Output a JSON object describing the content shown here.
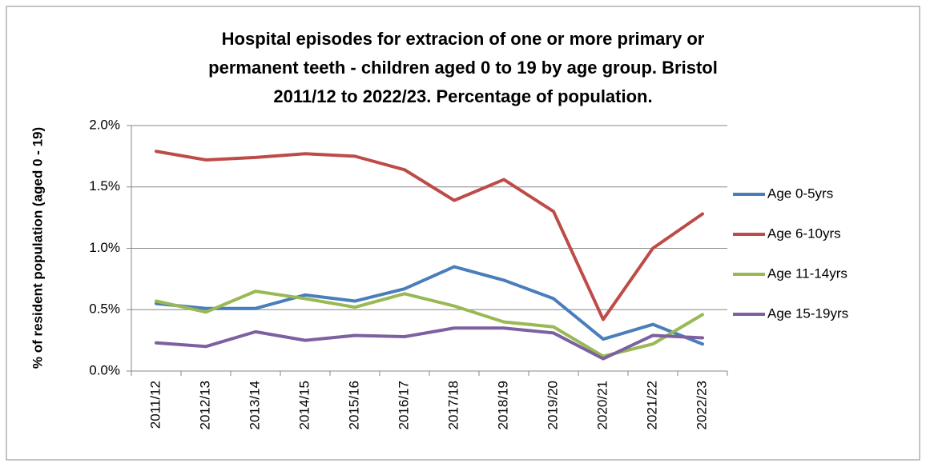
{
  "chart_data": {
    "type": "line",
    "title": [
      "Hospital episodes for extracion of one or more primary or",
      "permanent teeth - children aged 0 to 19 by age group. Bristol",
      "2011/12 to 2022/23. Percentage of population."
    ],
    "y_label": "% of resident population (aged 0 - 19)",
    "categories": [
      "2011/12",
      "2012/13",
      "2013/14",
      "2014/15",
      "2015/16",
      "2016/17",
      "2017/18",
      "2018/19",
      "2019/20",
      "2020/21",
      "2021/22",
      "2022/23"
    ],
    "series": [
      {
        "name": "Age 0-5yrs",
        "color": "#4a7ebb",
        "values": [
          0.55,
          0.51,
          0.51,
          0.62,
          0.57,
          0.67,
          0.85,
          0.74,
          0.59,
          0.26,
          0.38,
          0.22
        ]
      },
      {
        "name": "Age 6-10yrs",
        "color": "#be4b48",
        "values": [
          1.79,
          1.72,
          1.74,
          1.77,
          1.75,
          1.64,
          1.39,
          1.56,
          1.3,
          0.42,
          1.0,
          1.28
        ]
      },
      {
        "name": "Age 11-14yrs",
        "color": "#98b954",
        "values": [
          0.57,
          0.48,
          0.65,
          0.59,
          0.52,
          0.63,
          0.53,
          0.4,
          0.36,
          0.12,
          0.22,
          0.46
        ]
      },
      {
        "name": "Age 15-19yrs",
        "color": "#7d60a0",
        "values": [
          0.23,
          0.2,
          0.32,
          0.25,
          0.29,
          0.28,
          0.35,
          0.35,
          0.31,
          0.1,
          0.29,
          0.27
        ]
      }
    ],
    "ylim": [
      0,
      2
    ],
    "yticks": [
      {
        "value": 0,
        "label": "0.0%"
      },
      {
        "value": 0.5,
        "label": "0.5%"
      },
      {
        "value": 1,
        "label": "1.0%"
      },
      {
        "value": 1.5,
        "label": "1.5%"
      },
      {
        "value": 2,
        "label": "2.0%"
      }
    ],
    "grid": true,
    "legend": "right"
  }
}
